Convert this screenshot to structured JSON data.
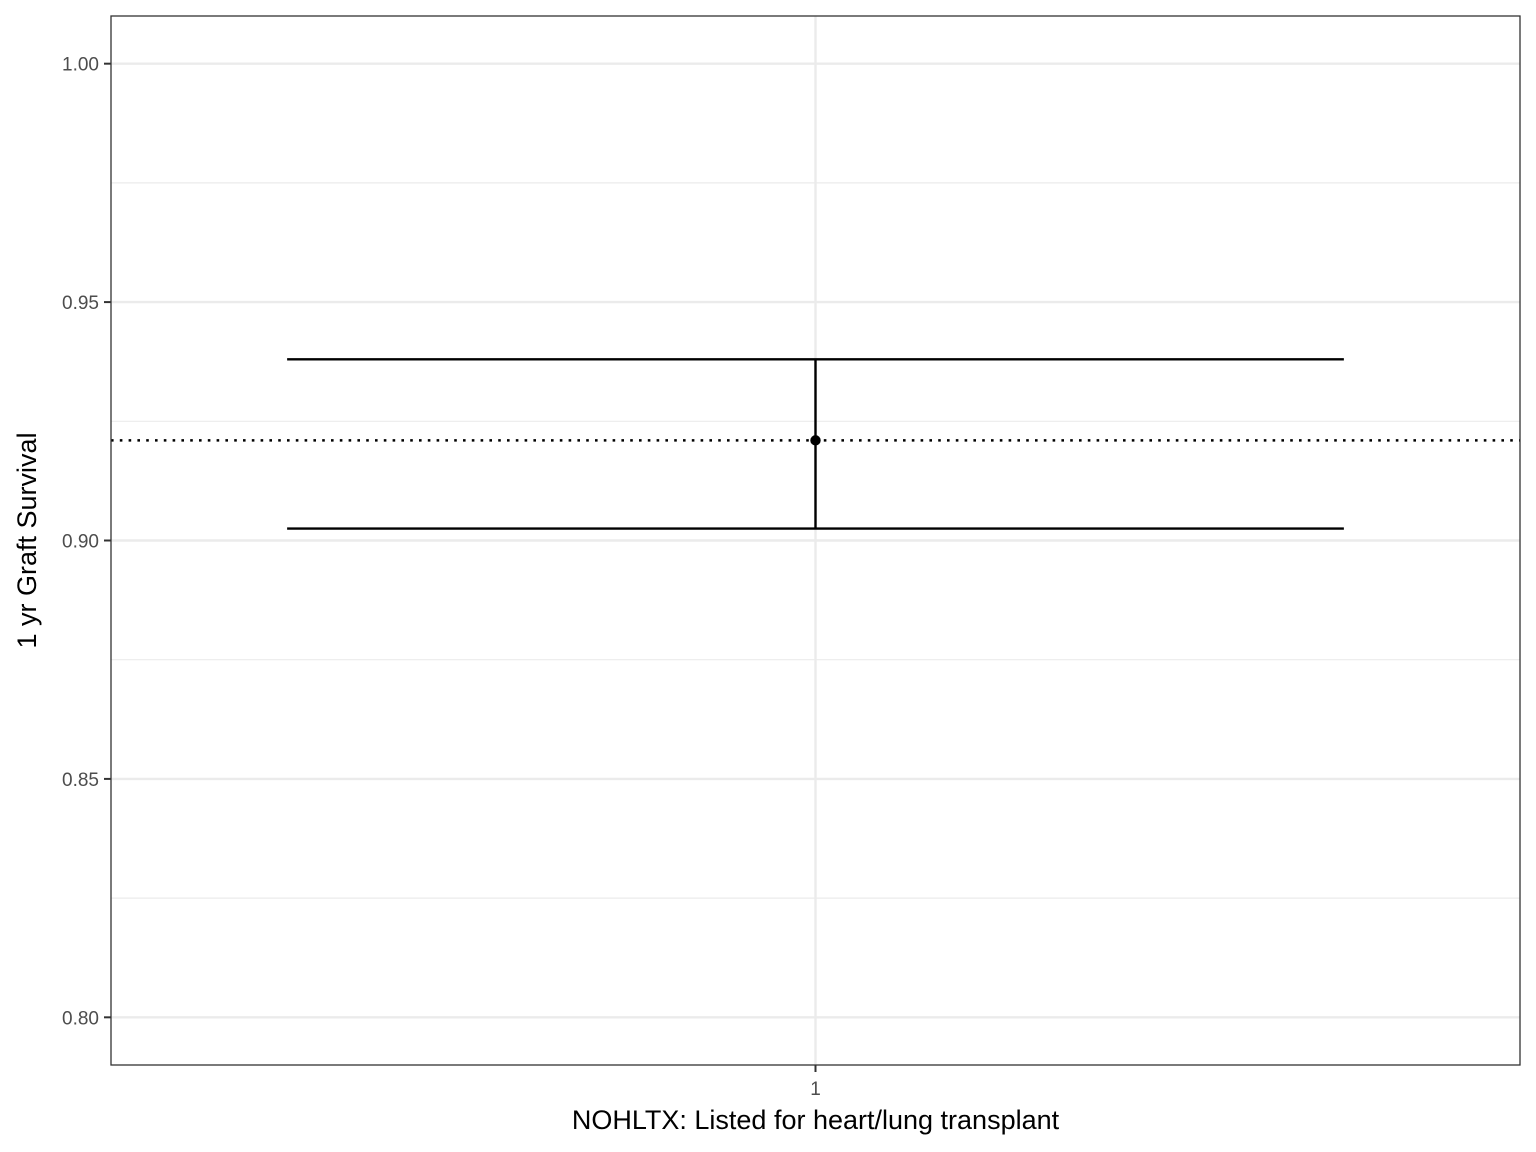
{
  "chart_data": {
    "type": "errorbar",
    "categories": [
      "1"
    ],
    "points": [
      {
        "x": "1",
        "estimate": 0.921,
        "lower": 0.9025,
        "upper": 0.938
      }
    ],
    "reference_line": {
      "y": 0.921,
      "style": "dotted"
    },
    "title": "",
    "xlabel": "NOHLTX: Listed for heart/lung transplant",
    "ylabel": "1 yr Graft Survival",
    "ylim": [
      0.79,
      1.01
    ],
    "yticks": [
      "0.80",
      "0.85",
      "0.90",
      "0.95",
      "1.00"
    ],
    "ytick_values": [
      0.8,
      0.85,
      0.9,
      0.95,
      1.0
    ],
    "grid": true,
    "colors": {
      "mark": "#000000",
      "grid": "#ebebeb",
      "panel_border": "#333333"
    }
  }
}
